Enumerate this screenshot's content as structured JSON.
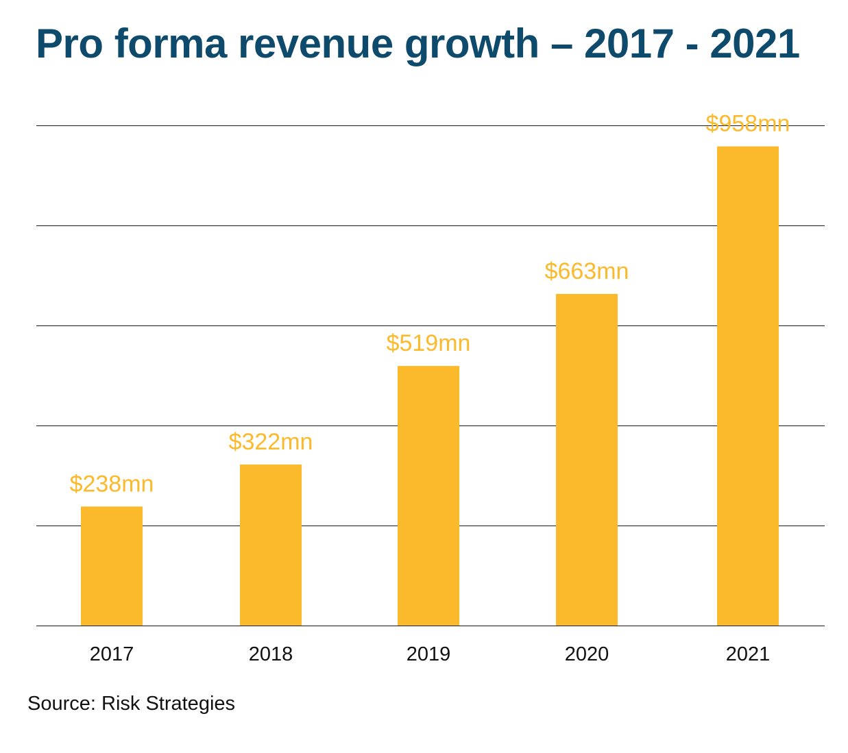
{
  "chart_data": {
    "type": "bar",
    "title": "Pro forma revenue growth – 2017 - 2021",
    "categories": [
      "2017",
      "2018",
      "2019",
      "2020",
      "2021"
    ],
    "values": [
      238,
      322,
      519,
      663,
      958
    ],
    "data_labels": [
      "$238mn",
      "$322mn",
      "$519mn",
      "$663mn",
      "$958mn"
    ],
    "ylim": [
      0,
      1000
    ],
    "gridlines": [
      0,
      200,
      400,
      600,
      800,
      1000
    ],
    "grid": true,
    "legend": "none",
    "colors": {
      "bar": "#fbb92c",
      "title": "#0d4a6b",
      "gridline": "#1a1a1a",
      "text": "#111111"
    }
  },
  "source": "Source: Risk Strategies"
}
